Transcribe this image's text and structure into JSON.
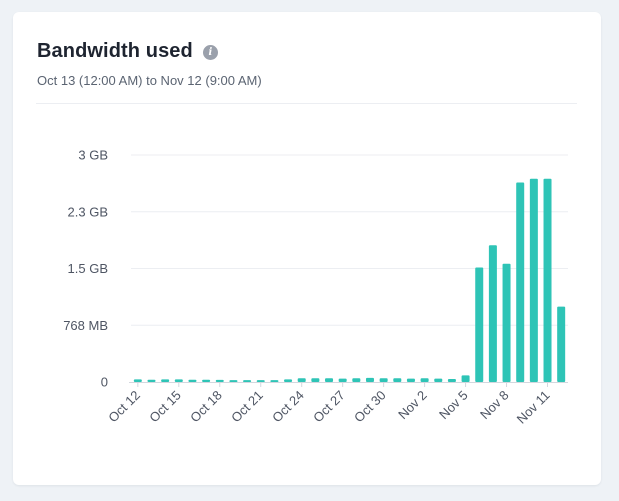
{
  "card": {
    "title": "Bandwidth used",
    "info_icon": "info-icon",
    "subtitle": "Oct 13 (12:00 AM) to Nov 12 (9:00 AM)"
  },
  "colors": {
    "bar": "#2ec4b6",
    "grid": "#eceef2",
    "axis": "#d3d7de",
    "text": "#4e5563"
  },
  "chart_data": {
    "type": "bar",
    "title": "Bandwidth used",
    "xlabel": "",
    "ylabel": "",
    "ylim": [
      0,
      3072
    ],
    "y_unit": "MB",
    "y_ticks": [
      0,
      768,
      1536,
      2304,
      3072
    ],
    "y_tick_labels": [
      "0",
      "768 MB",
      "1.5 GB",
      "2.3 GB",
      "3 GB"
    ],
    "categories": [
      "Oct 12",
      "Oct 13",
      "Oct 14",
      "Oct 15",
      "Oct 16",
      "Oct 17",
      "Oct 18",
      "Oct 19",
      "Oct 20",
      "Oct 21",
      "Oct 22",
      "Oct 23",
      "Oct 24",
      "Oct 25",
      "Oct 26",
      "Oct 27",
      "Oct 28",
      "Oct 29",
      "Oct 30",
      "Oct 31",
      "Nov 1",
      "Nov 2",
      "Nov 3",
      "Nov 4",
      "Nov 5",
      "Nov 6",
      "Nov 7",
      "Nov 8",
      "Nov 9",
      "Nov 10",
      "Nov 11",
      "Nov 12"
    ],
    "x_tick_labels": [
      "Oct 12",
      "Oct 15",
      "Oct 18",
      "Oct 21",
      "Oct 24",
      "Oct 27",
      "Oct 30",
      "Nov 2",
      "Nov 5",
      "Nov 8",
      "Nov 11"
    ],
    "values": [
      35,
      30,
      35,
      35,
      30,
      30,
      28,
      25,
      25,
      25,
      25,
      35,
      50,
      50,
      50,
      45,
      50,
      55,
      50,
      50,
      45,
      50,
      45,
      40,
      90,
      1550,
      1850,
      1600,
      2700,
      2750,
      2750,
      1020
    ]
  }
}
